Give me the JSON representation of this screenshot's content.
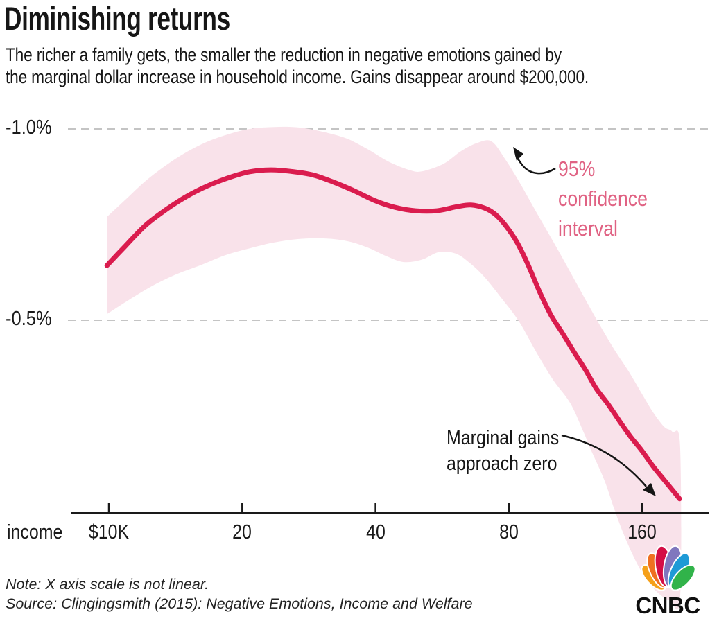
{
  "header": {
    "title": "Diminishing returns",
    "subtitle_line1": "The richer a family gets, the smaller the reduction in negative emotions gained by",
    "subtitle_line2": "the marginal dollar increase in household income. Gains disappear around $200,000."
  },
  "chart_data": {
    "type": "line",
    "title": "Diminishing returns",
    "x_axis": {
      "label": "income",
      "scale": "log2 (non-linear)",
      "unit": "$K household income",
      "ticks": [
        {
          "label": "$10K",
          "value": 10
        },
        {
          "label": "20",
          "value": 20
        },
        {
          "label": "40",
          "value": 40
        },
        {
          "label": "80",
          "value": 80
        },
        {
          "label": "160",
          "value": 160
        }
      ]
    },
    "y_axis": {
      "unit": "% change in negative emotions per marginal dollar",
      "baseline_value": 0,
      "gridlines": [
        {
          "label": "-1.0%",
          "value": -1.0
        },
        {
          "label": "-0.5%",
          "value": -0.5
        }
      ]
    },
    "series": [
      {
        "name": "Reduction in negative emotions",
        "color": "#da1c4e",
        "points": [
          [
            9.9,
            -0.643
          ],
          [
            10.9,
            -0.694
          ],
          [
            12.1,
            -0.748
          ],
          [
            13.5,
            -0.79
          ],
          [
            15.0,
            -0.824
          ],
          [
            16.7,
            -0.851
          ],
          [
            18.7,
            -0.873
          ],
          [
            20.8,
            -0.888
          ],
          [
            23.2,
            -0.893
          ],
          [
            25.8,
            -0.889
          ],
          [
            28.8,
            -0.88
          ],
          [
            32.0,
            -0.862
          ],
          [
            35.7,
            -0.839
          ],
          [
            39.8,
            -0.813
          ],
          [
            44.3,
            -0.795
          ],
          [
            49.3,
            -0.786
          ],
          [
            55.0,
            -0.786
          ],
          [
            61.2,
            -0.797
          ],
          [
            65.7,
            -0.801
          ],
          [
            70.6,
            -0.793
          ],
          [
            74.5,
            -0.777
          ],
          [
            78.6,
            -0.748
          ],
          [
            83.5,
            -0.703
          ],
          [
            88.4,
            -0.645
          ],
          [
            93.9,
            -0.574
          ],
          [
            99.6,
            -0.513
          ],
          [
            105.6,
            -0.467
          ],
          [
            112.1,
            -0.418
          ],
          [
            119.0,
            -0.371
          ],
          [
            125.9,
            -0.322
          ],
          [
            133.9,
            -0.281
          ],
          [
            142.1,
            -0.237
          ],
          [
            150.5,
            -0.196
          ],
          [
            159.7,
            -0.159
          ],
          [
            169.4,
            -0.118
          ],
          [
            179.5,
            -0.082
          ],
          [
            188.8,
            -0.051
          ],
          [
            194.3,
            -0.033
          ]
        ]
      }
    ],
    "band": {
      "name": "95% confidence interval",
      "color": "#f9e2ea",
      "upper": [
        [
          9.9,
          -0.77
        ],
        [
          10.9,
          -0.815
        ],
        [
          12.1,
          -0.864
        ],
        [
          13.5,
          -0.906
        ],
        [
          15.0,
          -0.94
        ],
        [
          16.7,
          -0.967
        ],
        [
          18.7,
          -0.987
        ],
        [
          20.8,
          -1.0
        ],
        [
          23.6,
          -1.005
        ],
        [
          26.7,
          -1.004
        ],
        [
          30.3,
          -0.993
        ],
        [
          34.4,
          -0.975
        ],
        [
          38.4,
          -0.947
        ],
        [
          42.7,
          -0.915
        ],
        [
          47.6,
          -0.893
        ],
        [
          50.9,
          -0.889
        ],
        [
          57.0,
          -0.909
        ],
        [
          62.4,
          -0.942
        ],
        [
          68.1,
          -0.964
        ],
        [
          73.2,
          -0.967
        ],
        [
          78.6,
          -0.92
        ],
        [
          84.4,
          -0.862
        ],
        [
          90.6,
          -0.799
        ],
        [
          97.2,
          -0.737
        ],
        [
          104.4,
          -0.674
        ],
        [
          112.1,
          -0.609
        ],
        [
          120.3,
          -0.545
        ],
        [
          129.1,
          -0.482
        ],
        [
          138.6,
          -0.422
        ],
        [
          148.8,
          -0.368
        ],
        [
          159.7,
          -0.308
        ],
        [
          169.4,
          -0.259
        ],
        [
          179.5,
          -0.221
        ],
        [
          187.3,
          -0.208
        ],
        [
          194.9,
          -0.168
        ]
      ],
      "lower": [
        [
          9.9,
          -0.516
        ],
        [
          11.1,
          -0.553
        ],
        [
          12.6,
          -0.591
        ],
        [
          14.2,
          -0.62
        ],
        [
          16.2,
          -0.645
        ],
        [
          18.3,
          -0.67
        ],
        [
          20.8,
          -0.688
        ],
        [
          23.6,
          -0.703
        ],
        [
          26.7,
          -0.712
        ],
        [
          30.3,
          -0.714
        ],
        [
          34.4,
          -0.707
        ],
        [
          38.4,
          -0.69
        ],
        [
          42.4,
          -0.667
        ],
        [
          46.3,
          -0.652
        ],
        [
          50.8,
          -0.658
        ],
        [
          55.6,
          -0.678
        ],
        [
          60.8,
          -0.674
        ],
        [
          65.7,
          -0.647
        ],
        [
          70.6,
          -0.612
        ],
        [
          77.2,
          -0.556
        ],
        [
          84.4,
          -0.496
        ],
        [
          92.2,
          -0.417
        ],
        [
          100.7,
          -0.344
        ],
        [
          110.1,
          -0.283
        ],
        [
          118.2,
          -0.205
        ],
        [
          121.8,
          -0.168
        ],
        [
          131.3,
          -0.083
        ],
        [
          138.1,
          -0.009
        ],
        [
          144.7,
          0.054
        ],
        [
          152.1,
          0.112
        ],
        [
          159.7,
          0.159
        ],
        [
          168.2,
          0.196
        ],
        [
          177.2,
          0.221
        ],
        [
          184.8,
          0.232
        ],
        [
          194.9,
          0.225
        ]
      ]
    }
  },
  "annotations": {
    "ci": {
      "line1": "95%",
      "line2": "confidence",
      "line3": "interval",
      "color": "#e06283"
    },
    "mg": {
      "line1": "Marginal gains",
      "line2": "approach zero"
    }
  },
  "footer": {
    "note": "Note: X axis scale is not linear.",
    "source": "Source: Clingingsmith (2015): Negative Emotions, Income and Welfare"
  },
  "logo": {
    "wordmark": "CNBC",
    "feather_colors": [
      "#f5a01a",
      "#ef7021",
      "#d40e45",
      "#8077be",
      "#1e9ad6",
      "#31b34a"
    ]
  }
}
